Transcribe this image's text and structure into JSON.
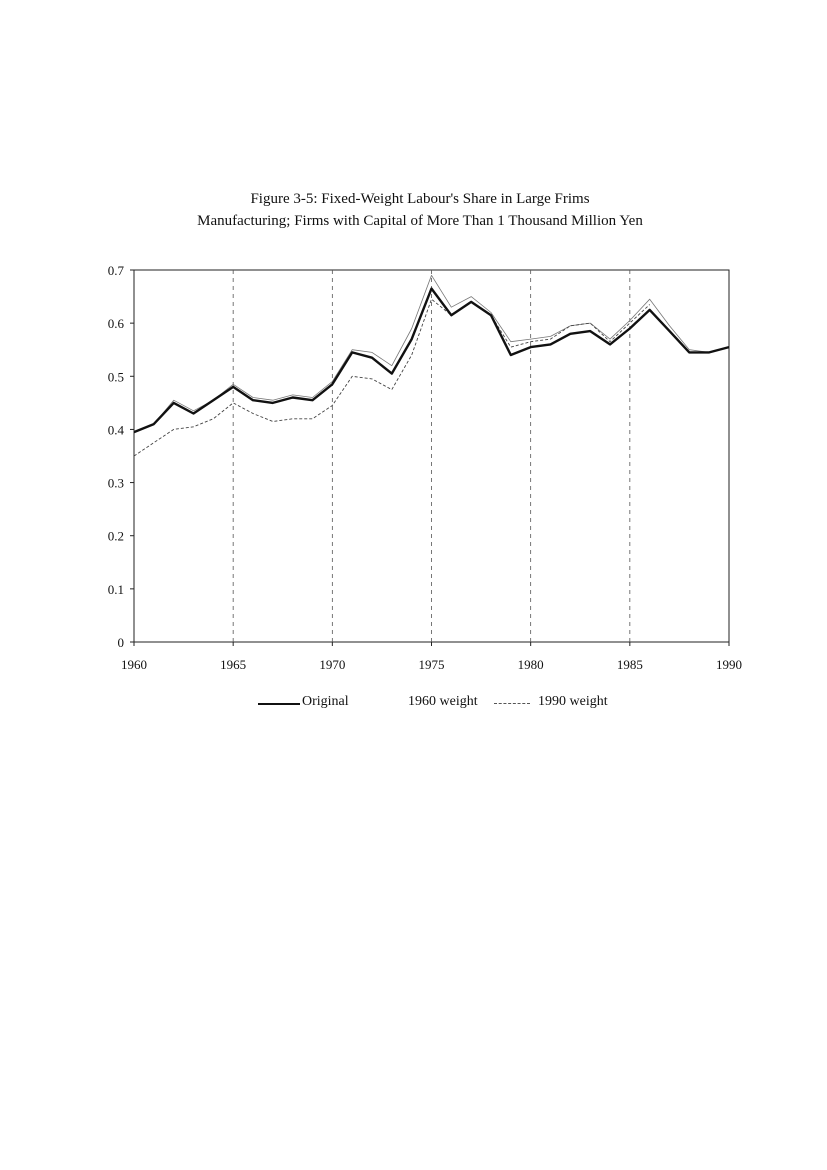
{
  "chart_data": {
    "type": "line",
    "title_line1": "Figure 3-5: Fixed-Weight Labour's Share in Large Frims",
    "title_line2": "Manufacturing; Firms with Capital of More Than 1 Thousand Million Yen",
    "xlabel": "",
    "ylabel": "",
    "xlim": [
      1960,
      1990
    ],
    "ylim": [
      0,
      0.7
    ],
    "x_ticks": [
      "1960",
      "1965",
      "1970",
      "1975",
      "1980",
      "1985",
      "1990"
    ],
    "y_ticks": [
      "0",
      "0.1",
      "0.2",
      "0.3",
      "0.4",
      "0.5",
      "0.6",
      "0.7"
    ],
    "grid": "vertical dashed at 5-year ticks",
    "legend_position": "bottom",
    "x": [
      1960,
      1961,
      1962,
      1963,
      1964,
      1965,
      1966,
      1967,
      1968,
      1969,
      1970,
      1971,
      1972,
      1973,
      1974,
      1975,
      1976,
      1977,
      1978,
      1979,
      1980,
      1981,
      1982,
      1983,
      1984,
      1985,
      1986,
      1987,
      1988,
      1989,
      1990
    ],
    "series": [
      {
        "name": "Original",
        "style": "solid-thick",
        "values": [
          0.395,
          0.41,
          0.45,
          0.43,
          0.455,
          0.48,
          0.455,
          0.45,
          0.46,
          0.455,
          0.485,
          0.545,
          0.535,
          0.505,
          0.57,
          0.665,
          0.615,
          0.64,
          0.615,
          0.54,
          0.555,
          0.56,
          0.58,
          0.585,
          0.56,
          0.59,
          0.625,
          0.585,
          0.545,
          0.545,
          0.555
        ]
      },
      {
        "name": "1960 weight",
        "style": "dashed-thin",
        "values": [
          0.35,
          0.375,
          0.4,
          0.405,
          0.42,
          0.45,
          0.43,
          0.415,
          0.42,
          0.42,
          0.445,
          0.5,
          0.495,
          0.475,
          0.54,
          0.645,
          0.615,
          0.64,
          0.615,
          0.555,
          0.565,
          0.57,
          0.595,
          0.6,
          0.565,
          0.6,
          0.635,
          null,
          null,
          null,
          null
        ]
      },
      {
        "name": "1990 weight",
        "style": "solid-thin",
        "values": [
          0.395,
          0.41,
          0.455,
          0.435,
          0.455,
          0.485,
          0.46,
          0.455,
          0.465,
          0.46,
          0.49,
          0.55,
          0.545,
          0.52,
          0.59,
          0.69,
          0.63,
          0.65,
          0.62,
          0.565,
          0.57,
          0.575,
          0.595,
          0.6,
          0.57,
          0.605,
          0.645,
          0.595,
          0.55,
          0.545,
          0.555
        ]
      }
    ]
  }
}
